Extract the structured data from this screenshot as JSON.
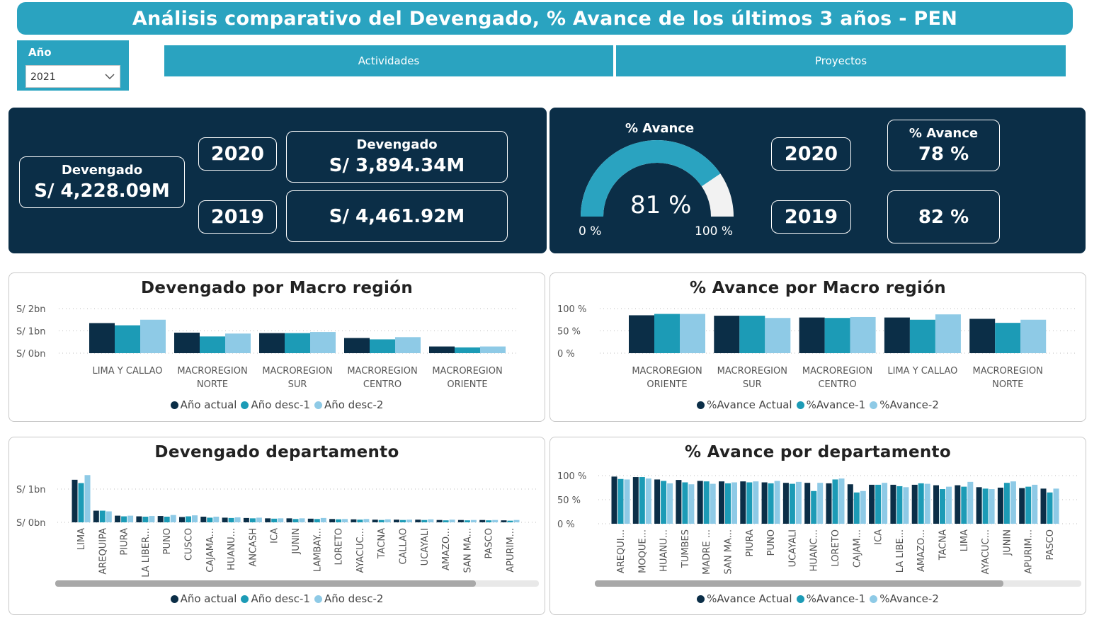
{
  "colors": {
    "accent": "#2aa3c0",
    "dark": "#0b2e47",
    "series": [
      "#0b2e47",
      "#1c9bb6",
      "#8ecae6"
    ]
  },
  "header": {
    "title": "Análisis comparativo del Devengado, % Avance de los últimos 3 años - PEN"
  },
  "year_slicer": {
    "label": "Año",
    "selected": "2021",
    "icon": "chevron-down-icon"
  },
  "nav": {
    "actividades": "Actividades",
    "proyectos": "Proyectos"
  },
  "kpi_devengado": {
    "main_label": "Devengado",
    "main_value": "S/ 4,228.09M",
    "year1": "2020",
    "year1_label": "Devengado",
    "year1_value": "S/ 3,894.34M",
    "year2": "2019",
    "year2_value": "S/ 4,461.92M"
  },
  "kpi_avance": {
    "gauge_title": "% Avance",
    "gauge_value": "81 %",
    "gauge_fraction": 0.81,
    "gauge_min": "0 %",
    "gauge_max": "100 %",
    "year1": "2020",
    "year1_label": "% Avance",
    "year1_value": "78 %",
    "year2": "2019",
    "year2_value": "82 %"
  },
  "chart_data": [
    {
      "id": "dev-macro",
      "type": "bar",
      "title": "Devengado por Macro región",
      "categories": [
        [
          "LIMA Y CALLAO"
        ],
        [
          "MACROREGION",
          "NORTE"
        ],
        [
          "MACROREGION",
          "SUR"
        ],
        [
          "MACROREGION",
          "CENTRO"
        ],
        [
          "MACROREGION",
          "ORIENTE"
        ]
      ],
      "series": [
        {
          "name": "Año actual",
          "values": [
            1.35,
            0.92,
            0.9,
            0.68,
            0.3
          ]
        },
        {
          "name": "Año desc-1",
          "values": [
            1.25,
            0.75,
            0.9,
            0.62,
            0.26
          ]
        },
        {
          "name": "Año desc-2",
          "values": [
            1.5,
            0.88,
            0.95,
            0.72,
            0.3
          ]
        }
      ],
      "ylim": [
        0,
        2
      ],
      "yticks": [
        {
          "v": 2,
          "label": "S/ 2bn"
        },
        {
          "v": 1,
          "label": "S/ 1bn"
        },
        {
          "v": 0,
          "label": "S/ 0bn"
        }
      ],
      "grid": true,
      "legend_position": "bottom"
    },
    {
      "id": "av-macro",
      "type": "bar",
      "title": "% Avance por Macro región",
      "categories": [
        [
          "MACROREGION",
          "ORIENTE"
        ],
        [
          "MACROREGION",
          "SUR"
        ],
        [
          "MACROREGION",
          "CENTRO"
        ],
        [
          "LIMA Y CALLAO"
        ],
        [
          "MACROREGION",
          "NORTE"
        ]
      ],
      "series": [
        {
          "name": "%Avance Actual",
          "values": [
            85,
            84,
            80,
            80,
            77
          ]
        },
        {
          "name": "%Avance-1",
          "values": [
            88,
            84,
            79,
            75,
            68
          ]
        },
        {
          "name": "%Avance-2",
          "values": [
            88,
            79,
            81,
            87,
            75
          ]
        }
      ],
      "ylim": [
        0,
        100
      ],
      "yticks": [
        {
          "v": 100,
          "label": "100 %"
        },
        {
          "v": 50,
          "label": "50 %"
        },
        {
          "v": 0,
          "label": "0 %"
        }
      ],
      "grid": true,
      "legend_position": "bottom"
    },
    {
      "id": "dev-depto",
      "type": "bar",
      "title": "Devengado departamento",
      "categories": [
        "LIMA",
        "AREQUIPA",
        "PIURA",
        "LA LIBER...",
        "PUNO",
        "CUSCO",
        "CAJAMA...",
        "HUANU...",
        "ANCASH",
        "ICA",
        "JUNIN",
        "LAMBAY...",
        "LORETO",
        "AYACUC...",
        "TACNA",
        "CALLAO",
        "UCAYALI",
        "AMAZO...",
        "SAN MA...",
        "PASCO",
        "APURIM..."
      ],
      "series": [
        {
          "name": "Año actual",
          "values": [
            1.28,
            0.35,
            0.2,
            0.18,
            0.19,
            0.16,
            0.17,
            0.14,
            0.13,
            0.12,
            0.12,
            0.11,
            0.1,
            0.09,
            0.08,
            0.08,
            0.08,
            0.07,
            0.07,
            0.07,
            0.06
          ]
        },
        {
          "name": "Año desc-1",
          "values": [
            1.18,
            0.35,
            0.18,
            0.17,
            0.17,
            0.18,
            0.14,
            0.13,
            0.12,
            0.11,
            0.1,
            0.1,
            0.09,
            0.08,
            0.07,
            0.07,
            0.07,
            0.06,
            0.06,
            0.06,
            0.05
          ]
        },
        {
          "name": "Año desc-2",
          "values": [
            1.42,
            0.33,
            0.2,
            0.19,
            0.22,
            0.21,
            0.17,
            0.15,
            0.14,
            0.12,
            0.12,
            0.13,
            0.1,
            0.1,
            0.09,
            0.08,
            0.09,
            0.08,
            0.07,
            0.07,
            0.07
          ]
        }
      ],
      "ylim": [
        0,
        2
      ],
      "yticks": [
        {
          "v": 1,
          "label": "S/ 1bn"
        },
        {
          "v": 0,
          "label": "S/ 0bn"
        }
      ],
      "grid": true,
      "legend_position": "bottom",
      "scroll_fraction": 0.87
    },
    {
      "id": "av-depto",
      "type": "bar",
      "title": "% Avance por departamento",
      "categories": [
        "AREQUI...",
        "MOQUE...",
        "HUANU...",
        "TUMBES",
        "MADRE ...",
        "SAN MA...",
        "PIURA",
        "PUNO",
        "UCAYALI",
        "HUANC...",
        "LORETO",
        "CAJAM...",
        "ICA",
        "LA LIBE...",
        "AMAZO...",
        "TACNA",
        "LIMA",
        "AYACUC...",
        "JUNIN",
        "APURIM...",
        "PASCO"
      ],
      "series": [
        {
          "name": "%Avance Actual",
          "values": [
            98,
            97,
            92,
            91,
            89,
            88,
            88,
            86,
            85,
            85,
            84,
            82,
            81,
            81,
            81,
            80,
            80,
            76,
            75,
            74,
            73
          ]
        },
        {
          "name": "%Avance-1",
          "values": [
            93,
            97,
            89,
            86,
            88,
            84,
            86,
            84,
            83,
            68,
            92,
            65,
            81,
            78,
            84,
            72,
            77,
            73,
            85,
            77,
            65
          ]
        },
        {
          "name": "%Avance-2",
          "values": [
            92,
            94,
            84,
            82,
            83,
            86,
            88,
            89,
            87,
            85,
            94,
            68,
            85,
            76,
            83,
            77,
            87,
            72,
            88,
            81,
            73
          ]
        }
      ],
      "ylim": [
        0,
        100
      ],
      "yticks": [
        {
          "v": 100,
          "label": "100 %"
        },
        {
          "v": 50,
          "label": "50 %"
        },
        {
          "v": 0,
          "label": "0 %"
        }
      ],
      "grid": true,
      "legend_position": "bottom",
      "scroll_fraction": 0.84
    }
  ]
}
